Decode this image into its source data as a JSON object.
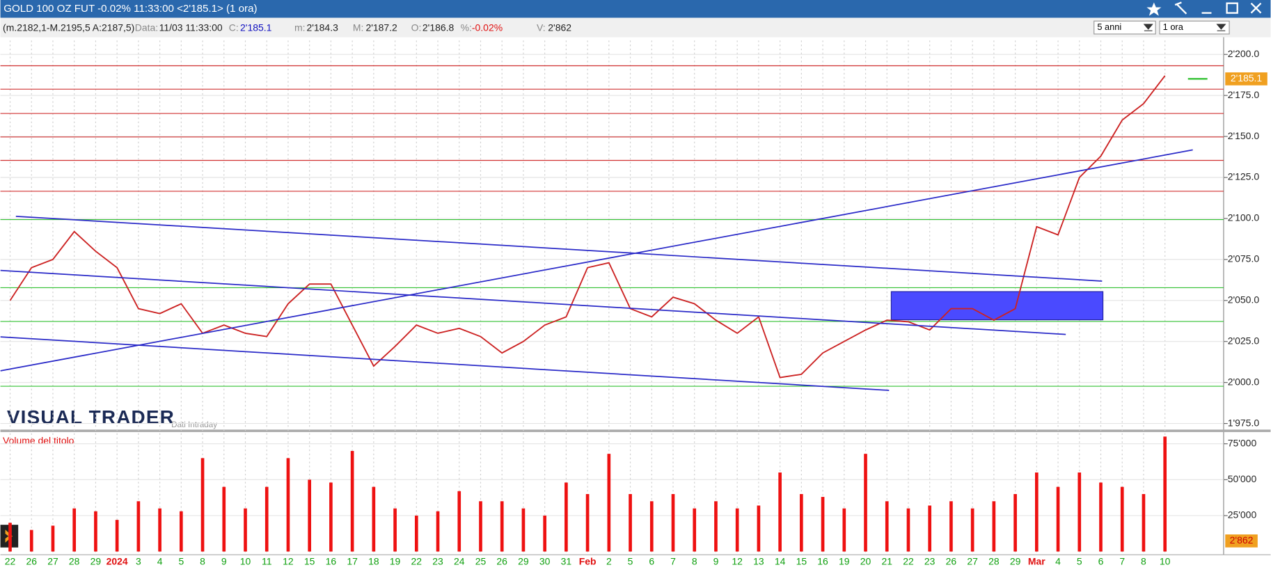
{
  "window": {
    "title": "GOLD 100 OZ FUT -0.02% 11:33:00  <2'185.1>  (1 ora)"
  },
  "info_bar": {
    "range": "(m.2182,1-M.2195,5 A:2187,5)",
    "fields": [
      {
        "label": "Data:",
        "value": "11/03 11:33:00"
      },
      {
        "label": "C:",
        "value": "2'185.1"
      },
      {
        "label": "m:",
        "value": "2'184.3"
      },
      {
        "label": "M:",
        "value": "2'187.2"
      },
      {
        "label": "O:",
        "value": "2'186.8"
      },
      {
        "label": "%:",
        "value": "-0.02%"
      },
      {
        "label": "V:",
        "value": "2'862"
      }
    ],
    "period": "5 anni",
    "interval": "1 ora"
  },
  "logo": {
    "name": "VISUAL TRADER",
    "subtitle": "Dati Intraday"
  },
  "chart_data": [
    {
      "type": "line",
      "color": "#cc2222",
      "categories": [
        "22",
        "26",
        "27",
        "28",
        "29",
        "2024",
        "3",
        "4",
        "5",
        "8",
        "9",
        "10",
        "11",
        "12",
        "15",
        "16",
        "17",
        "18",
        "19",
        "22",
        "23",
        "24",
        "25",
        "26",
        "29",
        "30",
        "31",
        "Feb",
        "2",
        "5",
        "6",
        "7",
        "8",
        "9",
        "12",
        "13",
        "14",
        "15",
        "16",
        "19",
        "20",
        "21",
        "22",
        "23",
        "26",
        "27",
        "28",
        "29",
        "Mar",
        "4",
        "5",
        "6",
        "7",
        "8",
        "10"
      ],
      "values": [
        2050,
        2070,
        2075,
        2092,
        2080,
        2070,
        2045,
        2042,
        2048,
        2030,
        2035,
        2030,
        2028,
        2048,
        2060,
        2060,
        2035,
        2010,
        2022,
        2035,
        2030,
        2033,
        2028,
        2018,
        2025,
        2035,
        2040,
        2070,
        2073,
        2045,
        2040,
        2052,
        2048,
        2038,
        2030,
        2040,
        2003,
        2005,
        2018,
        2025,
        2032,
        2038,
        2037,
        2032,
        2045,
        2045,
        2038,
        2045,
        2095,
        2090,
        2125,
        2138,
        2160,
        2170,
        2187
      ],
      "ylim": [
        1971.5,
        2208.5
      ],
      "yticks": [
        {
          "value": 1975,
          "label": "1'975.0"
        },
        {
          "value": 2000,
          "label": "2'000.0"
        },
        {
          "value": 2025,
          "label": "2'025.0"
        },
        {
          "value": 2050,
          "label": "2'050.0"
        },
        {
          "value": 2075,
          "label": "2'075.0"
        },
        {
          "value": 2100,
          "label": "2'100.0"
        },
        {
          "value": 2125,
          "label": "2'125.0"
        },
        {
          "value": 2150,
          "label": "2'150.0"
        },
        {
          "value": 2175,
          "label": "2'175.0"
        },
        {
          "value": 2200,
          "label": "2'200.0"
        }
      ],
      "last": {
        "value": 2185.1,
        "label": "2'185.1"
      },
      "levels": [
        {
          "value": 2193.1,
          "color": "#d03030"
        },
        {
          "value": 2178.8,
          "color": "#d03030"
        },
        {
          "value": 2164,
          "color": "#d03030"
        },
        {
          "value": 2149.7,
          "color": "#d03030"
        },
        {
          "value": 2135.4,
          "color": "#d03030"
        },
        {
          "value": 2116.6,
          "color": "#d03030"
        },
        {
          "value": 2099.3,
          "color": "#30c030"
        },
        {
          "value": 2057.8,
          "color": "#30c030"
        },
        {
          "value": 2037.2,
          "color": "#30c030"
        },
        {
          "value": 1997.7,
          "color": "#30c030"
        }
      ],
      "trendlines": [
        {
          "x": [
            0.27,
            51.06
          ],
          "y": [
            2101.3,
            2061.8
          ]
        },
        {
          "x": [
            -0.45,
            49.36
          ],
          "y": [
            2068.3,
            2029.3
          ]
        },
        {
          "x": [
            -0.45,
            41.1
          ],
          "y": [
            2027.8,
            1995.2
          ]
        },
        {
          "x": [
            -0.45,
            55.3
          ],
          "y": [
            2007.1,
            2141.8
          ]
        }
      ],
      "zone": {
        "x": [
          41.2,
          51.1
        ],
        "y": [
          2038.2,
          2055.4
        ],
        "color": "#4a4aff"
      }
    },
    {
      "type": "bar",
      "title": "Volume del titolo",
      "color": "#ee1111",
      "values": [
        20000,
        15000,
        18000,
        30000,
        28000,
        22000,
        35000,
        30000,
        28000,
        65000,
        45000,
        30000,
        45000,
        65000,
        50000,
        48000,
        70000,
        45000,
        30000,
        25000,
        28000,
        42000,
        35000,
        35000,
        30000,
        25000,
        48000,
        40000,
        68000,
        40000,
        35000,
        40000,
        30000,
        35000,
        30000,
        32000,
        55000,
        40000,
        38000,
        30000,
        68000,
        35000,
        30000,
        32000,
        35000,
        30000,
        35000,
        40000,
        55000,
        45000,
        55000,
        48000,
        45000,
        40000,
        80000
      ],
      "ylim": [
        0,
        82300
      ],
      "yticks": [
        {
          "value": 25000,
          "label": "25'000"
        },
        {
          "value": 50000,
          "label": "50'000"
        },
        {
          "value": 75000,
          "label": "75'000"
        }
      ],
      "last": {
        "value": 2862,
        "label": "2'862"
      }
    }
  ]
}
